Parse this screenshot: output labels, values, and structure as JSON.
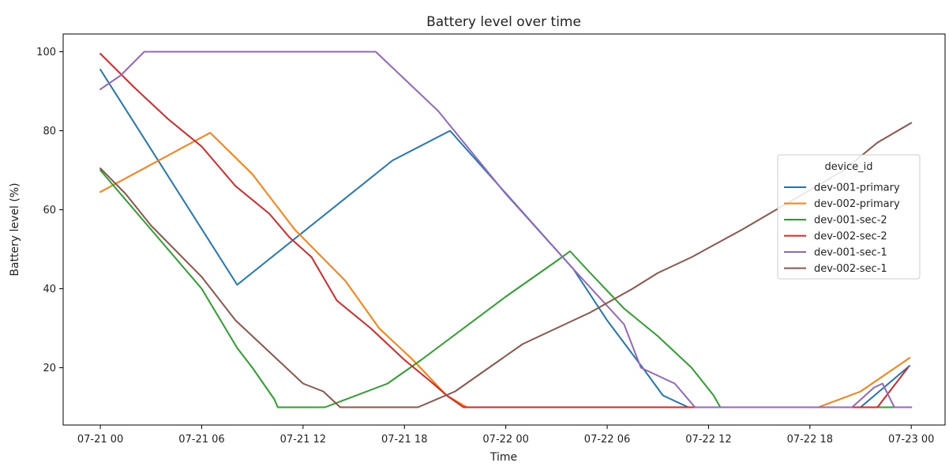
{
  "chart_data": {
    "type": "line",
    "title": "Battery level over time",
    "xlabel": "Time",
    "ylabel": "Battery level (%)",
    "x_unit": "hours",
    "x_tick_values": [
      0,
      6,
      12,
      18,
      24,
      30,
      36,
      42,
      48
    ],
    "x_tick_labels": [
      "07-21 00",
      "07-21 06",
      "07-21 12",
      "07-21 18",
      "07-22 00",
      "07-22 06",
      "07-22 12",
      "07-22 18",
      "07-23 00"
    ],
    "xlim": [
      -2.2,
      50
    ],
    "ylim": [
      5.5,
      104.5
    ],
    "y_ticks": [
      20,
      40,
      60,
      80,
      100
    ],
    "grid": false,
    "legend": {
      "title": "device_id",
      "placement": "right"
    },
    "series": [
      {
        "name": "dev-001-primary",
        "color": "#1f77b4",
        "points": [
          [
            0,
            95.5
          ],
          [
            8.1,
            41
          ],
          [
            17.3,
            72.5
          ],
          [
            20.7,
            80
          ],
          [
            28,
            45
          ],
          [
            30,
            32
          ],
          [
            32.1,
            20
          ],
          [
            33.3,
            13
          ],
          [
            34.8,
            10
          ],
          [
            45,
            10
          ],
          [
            47.9,
            20.5
          ]
        ]
      },
      {
        "name": "dev-002-primary",
        "color": "#ff7f0e",
        "points": [
          [
            0,
            64.5
          ],
          [
            6.5,
            79.5
          ],
          [
            9,
            69
          ],
          [
            11.5,
            55
          ],
          [
            14.5,
            42
          ],
          [
            16.5,
            30
          ],
          [
            18.5,
            22
          ],
          [
            20.5,
            13
          ],
          [
            21.7,
            10
          ],
          [
            42.5,
            10
          ],
          [
            45,
            14
          ],
          [
            47.9,
            22.5
          ]
        ]
      },
      {
        "name": "dev-001-sec-2",
        "color": "#2ca02c",
        "points": [
          [
            0,
            70
          ],
          [
            3,
            55
          ],
          [
            6,
            40
          ],
          [
            8.1,
            25
          ],
          [
            9,
            20
          ],
          [
            10.3,
            12
          ],
          [
            10.5,
            10
          ],
          [
            13.3,
            10
          ],
          [
            17,
            16
          ],
          [
            19,
            22
          ],
          [
            24,
            38
          ],
          [
            27,
            47
          ],
          [
            27.8,
            49.5
          ],
          [
            29,
            44
          ],
          [
            31,
            35
          ],
          [
            33,
            28
          ],
          [
            35,
            20
          ],
          [
            36.3,
            13
          ],
          [
            36.7,
            10
          ],
          [
            48,
            10
          ]
        ]
      },
      {
        "name": "dev-002-sec-2",
        "color": "#d62728",
        "points": [
          [
            0,
            99.5
          ],
          [
            2,
            91
          ],
          [
            4,
            83
          ],
          [
            6,
            76
          ],
          [
            8,
            66
          ],
          [
            10,
            59
          ],
          [
            11.2,
            53
          ],
          [
            12.5,
            48
          ],
          [
            14,
            37
          ],
          [
            16,
            30
          ],
          [
            18,
            22
          ],
          [
            19.7,
            16
          ],
          [
            20.5,
            13
          ],
          [
            21.5,
            10
          ],
          [
            46,
            10
          ],
          [
            47.8,
            20
          ]
        ]
      },
      {
        "name": "dev-001-sec-1",
        "color": "#9467bd",
        "points": [
          [
            0,
            90.5
          ],
          [
            1.2,
            94
          ],
          [
            2.6,
            100
          ],
          [
            16.3,
            100
          ],
          [
            20,
            85
          ],
          [
            24,
            64
          ],
          [
            28,
            45
          ],
          [
            31,
            31
          ],
          [
            32,
            20
          ],
          [
            34,
            16
          ],
          [
            35.2,
            10
          ],
          [
            44.5,
            10
          ],
          [
            45.8,
            15
          ],
          [
            46.3,
            16
          ],
          [
            47,
            10
          ],
          [
            48,
            10
          ]
        ]
      },
      {
        "name": "dev-002-sec-1",
        "color": "#8c564b",
        "points": [
          [
            0,
            70.5
          ],
          [
            1.5,
            64
          ],
          [
            3,
            56
          ],
          [
            6,
            43
          ],
          [
            8,
            32
          ],
          [
            10,
            24
          ],
          [
            12,
            16
          ],
          [
            13.2,
            14
          ],
          [
            14.2,
            10
          ],
          [
            18.8,
            10
          ],
          [
            21,
            14
          ],
          [
            23,
            20
          ],
          [
            25,
            26
          ],
          [
            27,
            30
          ],
          [
            29,
            34
          ],
          [
            31.5,
            40
          ],
          [
            33,
            44
          ],
          [
            35,
            48
          ],
          [
            38,
            55
          ],
          [
            40,
            60
          ],
          [
            42,
            65
          ],
          [
            44,
            70
          ],
          [
            46,
            77
          ],
          [
            48,
            82
          ]
        ]
      }
    ]
  }
}
